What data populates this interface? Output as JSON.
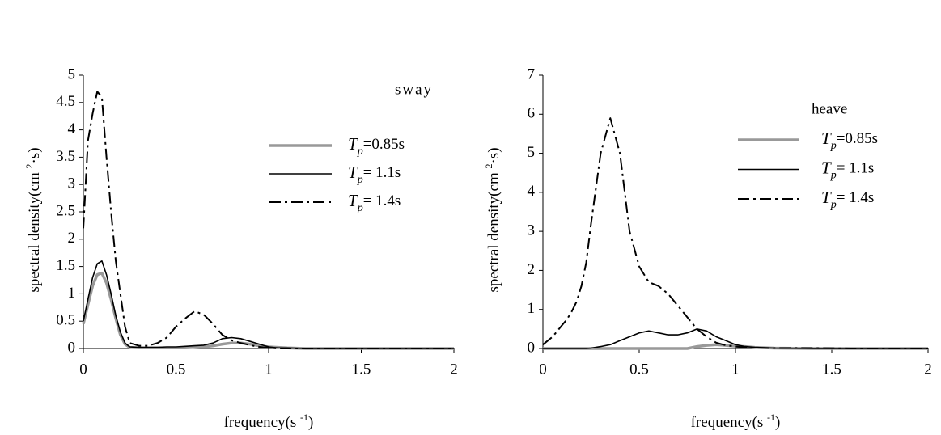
{
  "chart_data": [
    {
      "type": "line",
      "annotation": "sway",
      "xlabel": "frequency(s-1)",
      "ylabel": "spectral density(cm2·s)",
      "x": [
        0,
        0.025,
        0.05,
        0.075,
        0.1,
        0.125,
        0.15,
        0.175,
        0.2,
        0.225,
        0.25,
        0.3,
        0.35,
        0.4,
        0.45,
        0.5,
        0.55,
        0.6,
        0.65,
        0.7,
        0.75,
        0.8,
        0.85,
        0.9,
        0.95,
        1.0,
        1.05,
        1.1,
        1.2,
        1.4,
        1.6,
        1.8,
        2.0
      ],
      "series": [
        {
          "name": "Tp=0.85s",
          "color": "#999999",
          "style": "thick",
          "values": [
            0.45,
            0.8,
            1.15,
            1.35,
            1.38,
            1.2,
            0.9,
            0.55,
            0.25,
            0.08,
            0.02,
            0.01,
            0.01,
            0.01,
            0.01,
            0.01,
            0.01,
            0.02,
            0.03,
            0.05,
            0.08,
            0.1,
            0.1,
            0.08,
            0.05,
            0.03,
            0.02,
            0.01,
            0,
            0,
            0,
            0,
            0
          ]
        },
        {
          "name": "Tp= 1.1s",
          "color": "#000000",
          "style": "solid",
          "values": [
            0.5,
            0.9,
            1.3,
            1.55,
            1.6,
            1.35,
            1.0,
            0.6,
            0.3,
            0.1,
            0.03,
            0.02,
            0.02,
            0.02,
            0.03,
            0.03,
            0.04,
            0.05,
            0.06,
            0.1,
            0.18,
            0.2,
            0.18,
            0.13,
            0.08,
            0.03,
            0.01,
            0.01,
            0,
            0,
            0,
            0,
            0
          ]
        },
        {
          "name": "Tp= 1.4s",
          "color": "#000000",
          "style": "dashdot",
          "values": [
            2.2,
            3.8,
            4.3,
            4.7,
            4.6,
            3.5,
            2.5,
            1.6,
            1.0,
            0.4,
            0.1,
            0.05,
            0.05,
            0.1,
            0.2,
            0.4,
            0.55,
            0.68,
            0.62,
            0.45,
            0.25,
            0.15,
            0.1,
            0.06,
            0.03,
            0.01,
            0,
            0,
            0,
            0,
            0,
            0,
            0
          ]
        }
      ],
      "xlim": [
        0,
        2
      ],
      "ylim": [
        0,
        5
      ],
      "xticks": [
        0,
        0.5,
        1,
        1.5,
        2
      ],
      "yticks": [
        0,
        0.5,
        1,
        1.5,
        2,
        2.5,
        3,
        3.5,
        4,
        4.5,
        5
      ]
    },
    {
      "type": "line",
      "annotation": "heave",
      "xlabel": "frequency(s-1)",
      "ylabel": "spectral density(cm2·s)",
      "x": [
        0,
        0.025,
        0.05,
        0.075,
        0.1,
        0.125,
        0.15,
        0.175,
        0.2,
        0.225,
        0.25,
        0.3,
        0.35,
        0.4,
        0.45,
        0.5,
        0.55,
        0.6,
        0.65,
        0.7,
        0.75,
        0.8,
        0.85,
        0.9,
        0.95,
        1.0,
        1.05,
        1.1,
        1.2,
        1.4,
        1.6,
        1.8,
        2.0
      ],
      "series": [
        {
          "name": "Tp=0.85s",
          "color": "#999999",
          "style": "thick",
          "values": [
            0,
            0,
            0,
            0,
            0,
            0,
            0,
            0,
            0,
            0,
            0,
            0,
            0,
            0,
            0,
            0,
            0,
            0,
            0,
            0,
            0,
            0.05,
            0.08,
            0.1,
            0.08,
            0.06,
            0.05,
            0.03,
            0.01,
            0,
            0,
            0,
            0
          ]
        },
        {
          "name": "Tp= 1.1s",
          "color": "#000000",
          "style": "solid",
          "values": [
            0,
            0,
            0,
            0,
            0,
            0,
            0,
            0,
            0,
            0,
            0.01,
            0.05,
            0.1,
            0.2,
            0.3,
            0.4,
            0.45,
            0.4,
            0.35,
            0.35,
            0.4,
            0.5,
            0.45,
            0.3,
            0.2,
            0.1,
            0.05,
            0.03,
            0.01,
            0,
            0,
            0,
            0
          ]
        },
        {
          "name": "Tp= 1.4s",
          "color": "#000000",
          "style": "dashdot",
          "values": [
            0.1,
            0.2,
            0.3,
            0.45,
            0.6,
            0.75,
            0.95,
            1.2,
            1.6,
            2.2,
            3.2,
            5.0,
            5.9,
            5.0,
            3.0,
            2.1,
            1.7,
            1.6,
            1.4,
            1.1,
            0.8,
            0.5,
            0.3,
            0.15,
            0.08,
            0.05,
            0.03,
            0.02,
            0.01,
            0.01,
            0,
            0,
            0
          ]
        }
      ],
      "xlim": [
        0,
        2
      ],
      "ylim": [
        0,
        7
      ],
      "xticks": [
        0,
        0.5,
        1,
        1.5,
        2
      ],
      "yticks": [
        0,
        1,
        2,
        3,
        4,
        5,
        6,
        7
      ]
    }
  ]
}
